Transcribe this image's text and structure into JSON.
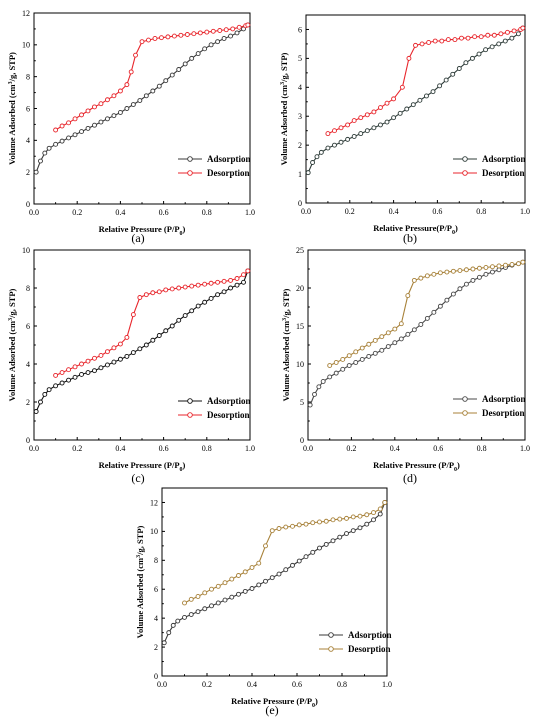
{
  "chart_data": [
    {
      "type": "line",
      "caption": "(a)",
      "xlabel_main": "Relative Pressure (P/P",
      "xlabel_sub": "0",
      "xlabel_end": ")",
      "ylabel_main": "Volume Adsorbed (cm",
      "ylabel_sup": "3",
      "ylabel_end": "/g, STP)",
      "xlim": [
        0,
        1.0
      ],
      "ylim": [
        0,
        12
      ],
      "xticks": [
        "0.0",
        "0.2",
        "0.4",
        "0.6",
        "0.8",
        "1.0"
      ],
      "yticks": [
        "0",
        "2",
        "4",
        "6",
        "8",
        "10",
        "12"
      ],
      "legend_position": "bottom-right",
      "series": [
        {
          "name": "Adsorption",
          "color": "#3a3a3a",
          "x": [
            0.01,
            0.03,
            0.05,
            0.07,
            0.1,
            0.13,
            0.16,
            0.19,
            0.22,
            0.25,
            0.28,
            0.31,
            0.34,
            0.37,
            0.4,
            0.43,
            0.46,
            0.49,
            0.52,
            0.55,
            0.58,
            0.61,
            0.64,
            0.67,
            0.7,
            0.73,
            0.76,
            0.79,
            0.82,
            0.85,
            0.88,
            0.91,
            0.94,
            0.97,
            0.99
          ],
          "y": [
            2.0,
            2.7,
            3.2,
            3.5,
            3.75,
            3.95,
            4.15,
            4.35,
            4.55,
            4.75,
            4.95,
            5.15,
            5.35,
            5.55,
            5.75,
            6.0,
            6.25,
            6.5,
            6.8,
            7.1,
            7.4,
            7.75,
            8.1,
            8.45,
            8.8,
            9.15,
            9.45,
            9.75,
            10.0,
            10.2,
            10.4,
            10.55,
            10.75,
            11.0,
            11.25
          ]
        },
        {
          "name": "Desorption",
          "color": "#e8262c",
          "x": [
            0.1,
            0.13,
            0.16,
            0.19,
            0.22,
            0.25,
            0.28,
            0.31,
            0.34,
            0.37,
            0.4,
            0.43,
            0.45,
            0.47,
            0.5,
            0.53,
            0.56,
            0.59,
            0.62,
            0.65,
            0.68,
            0.71,
            0.74,
            0.77,
            0.8,
            0.83,
            0.86,
            0.89,
            0.92,
            0.95,
            0.98,
            0.99
          ],
          "y": [
            4.65,
            4.9,
            5.1,
            5.35,
            5.6,
            5.85,
            6.1,
            6.3,
            6.55,
            6.8,
            7.1,
            7.5,
            8.3,
            9.35,
            10.2,
            10.3,
            10.4,
            10.45,
            10.5,
            10.55,
            10.6,
            10.65,
            10.7,
            10.75,
            10.8,
            10.85,
            10.9,
            10.95,
            11.0,
            11.1,
            11.2,
            11.25
          ]
        }
      ]
    },
    {
      "type": "line",
      "caption": "(b)",
      "xlabel_main": "Relative Pressure(P/P",
      "xlabel_sub": "0",
      "xlabel_end": ")",
      "ylabel_main": "Volume Adsorbed (cm",
      "ylabel_sup": "3",
      "ylabel_end": "/g, STP)",
      "xlim": [
        0,
        1.0
      ],
      "ylim": [
        0,
        6.5
      ],
      "xticks": [
        "0.0",
        "0.2",
        "0.4",
        "0.6",
        "0.8",
        "1.0"
      ],
      "yticks": [
        "0",
        "1",
        "2",
        "3",
        "4",
        "5",
        "6"
      ],
      "legend_position": "bottom-right",
      "series": [
        {
          "name": "Adsorption",
          "color": "#2f3d3a",
          "x": [
            0.01,
            0.03,
            0.05,
            0.07,
            0.1,
            0.13,
            0.16,
            0.19,
            0.22,
            0.25,
            0.28,
            0.31,
            0.34,
            0.37,
            0.4,
            0.43,
            0.46,
            0.49,
            0.52,
            0.55,
            0.58,
            0.61,
            0.64,
            0.67,
            0.7,
            0.73,
            0.76,
            0.79,
            0.82,
            0.85,
            0.88,
            0.91,
            0.94,
            0.97,
            0.99
          ],
          "y": [
            1.05,
            1.4,
            1.6,
            1.75,
            1.9,
            2.0,
            2.1,
            2.2,
            2.3,
            2.4,
            2.5,
            2.6,
            2.7,
            2.8,
            2.95,
            3.1,
            3.25,
            3.4,
            3.55,
            3.7,
            3.85,
            4.05,
            4.25,
            4.45,
            4.65,
            4.85,
            5.0,
            5.15,
            5.3,
            5.4,
            5.5,
            5.6,
            5.7,
            5.85,
            6.05
          ]
        },
        {
          "name": "Desorption",
          "color": "#e8262c",
          "x": [
            0.1,
            0.13,
            0.16,
            0.19,
            0.22,
            0.25,
            0.28,
            0.31,
            0.34,
            0.37,
            0.4,
            0.44,
            0.47,
            0.5,
            0.53,
            0.56,
            0.59,
            0.62,
            0.65,
            0.68,
            0.71,
            0.74,
            0.77,
            0.8,
            0.83,
            0.86,
            0.89,
            0.92,
            0.95,
            0.98,
            0.99
          ],
          "y": [
            2.4,
            2.5,
            2.6,
            2.7,
            2.85,
            2.95,
            3.05,
            3.15,
            3.3,
            3.45,
            3.6,
            4.0,
            5.0,
            5.45,
            5.5,
            5.55,
            5.6,
            5.6,
            5.65,
            5.65,
            5.7,
            5.7,
            5.75,
            5.75,
            5.8,
            5.8,
            5.85,
            5.9,
            5.95,
            6.0,
            6.05
          ]
        }
      ]
    },
    {
      "type": "line",
      "caption": "(c)",
      "xlabel_main": "Relative Pressure (P/P",
      "xlabel_sub": "0",
      "xlabel_end": ")",
      "ylabel_main": "Volume Adsorbed (cm",
      "ylabel_sup": "3",
      "ylabel_end": "/g, STP)",
      "xlim": [
        0,
        1.0
      ],
      "ylim": [
        0,
        10
      ],
      "xticks": [
        "0.0",
        "0.2",
        "0.4",
        "0.6",
        "0.8",
        "1.0"
      ],
      "yticks": [
        "0",
        "2",
        "4",
        "6",
        "8",
        "10"
      ],
      "legend_position": "bottom-right",
      "series": [
        {
          "name": "Adsorption",
          "color": "#111111",
          "x": [
            0.01,
            0.03,
            0.05,
            0.07,
            0.1,
            0.13,
            0.16,
            0.19,
            0.22,
            0.25,
            0.28,
            0.31,
            0.34,
            0.37,
            0.4,
            0.43,
            0.46,
            0.49,
            0.52,
            0.55,
            0.58,
            0.61,
            0.64,
            0.67,
            0.7,
            0.73,
            0.76,
            0.79,
            0.82,
            0.85,
            0.88,
            0.91,
            0.94,
            0.97,
            0.99
          ],
          "y": [
            1.5,
            2.0,
            2.4,
            2.65,
            2.85,
            3.0,
            3.15,
            3.3,
            3.45,
            3.55,
            3.65,
            3.8,
            3.95,
            4.1,
            4.25,
            4.4,
            4.6,
            4.8,
            5.0,
            5.25,
            5.5,
            5.75,
            6.0,
            6.3,
            6.55,
            6.8,
            7.05,
            7.25,
            7.45,
            7.65,
            7.8,
            8.0,
            8.15,
            8.3,
            8.9
          ]
        },
        {
          "name": "Desorption",
          "color": "#e8262c",
          "x": [
            0.1,
            0.13,
            0.16,
            0.19,
            0.22,
            0.25,
            0.28,
            0.31,
            0.34,
            0.37,
            0.4,
            0.43,
            0.46,
            0.49,
            0.52,
            0.55,
            0.58,
            0.61,
            0.64,
            0.67,
            0.7,
            0.73,
            0.76,
            0.79,
            0.82,
            0.85,
            0.88,
            0.91,
            0.94,
            0.97,
            0.99
          ],
          "y": [
            3.4,
            3.55,
            3.7,
            3.85,
            4.0,
            4.15,
            4.3,
            4.45,
            4.65,
            4.85,
            5.05,
            5.4,
            6.6,
            7.5,
            7.65,
            7.75,
            7.8,
            7.9,
            7.95,
            8.0,
            8.05,
            8.1,
            8.15,
            8.2,
            8.25,
            8.3,
            8.35,
            8.4,
            8.5,
            8.7,
            8.9
          ]
        }
      ]
    },
    {
      "type": "line",
      "caption": "(d)",
      "xlabel_main": "Relative Pressure (P/P",
      "xlabel_sub": "0",
      "xlabel_end": ")",
      "ylabel_main": "Volume Adsorbed (cm",
      "ylabel_sup": "3",
      "ylabel_end": "/g, STP)",
      "xlim": [
        0,
        1.0
      ],
      "ylim": [
        0,
        25
      ],
      "xticks": [
        "0.0",
        "0.2",
        "0.4",
        "0.6",
        "0.8",
        "1.0"
      ],
      "yticks": [
        "0",
        "5",
        "10",
        "15",
        "20",
        "25"
      ],
      "legend_position": "bottom-right",
      "series": [
        {
          "name": "Adsorption",
          "color": "#4a4a4a",
          "x": [
            0.01,
            0.03,
            0.05,
            0.07,
            0.1,
            0.13,
            0.16,
            0.19,
            0.22,
            0.25,
            0.28,
            0.31,
            0.34,
            0.37,
            0.4,
            0.43,
            0.46,
            0.49,
            0.52,
            0.55,
            0.58,
            0.61,
            0.64,
            0.67,
            0.7,
            0.73,
            0.76,
            0.79,
            0.82,
            0.85,
            0.88,
            0.91,
            0.94,
            0.97,
            0.99
          ],
          "y": [
            4.6,
            6.0,
            7.0,
            7.7,
            8.3,
            8.8,
            9.3,
            9.8,
            10.2,
            10.6,
            11.0,
            11.4,
            11.8,
            12.3,
            12.8,
            13.3,
            13.9,
            14.5,
            15.2,
            16.0,
            16.8,
            17.6,
            18.4,
            19.2,
            19.9,
            20.5,
            21.0,
            21.4,
            21.8,
            22.1,
            22.4,
            22.7,
            23.0,
            23.2,
            23.4
          ]
        },
        {
          "name": "Desorption",
          "color": "#a8823a",
          "x": [
            0.1,
            0.13,
            0.16,
            0.19,
            0.22,
            0.25,
            0.28,
            0.31,
            0.34,
            0.37,
            0.4,
            0.43,
            0.46,
            0.49,
            0.52,
            0.55,
            0.58,
            0.61,
            0.64,
            0.67,
            0.7,
            0.73,
            0.76,
            0.79,
            0.82,
            0.85,
            0.88,
            0.91,
            0.94,
            0.97,
            0.99
          ],
          "y": [
            9.8,
            10.2,
            10.6,
            11.1,
            11.6,
            12.1,
            12.6,
            13.1,
            13.6,
            14.1,
            14.6,
            15.3,
            19.0,
            21.0,
            21.3,
            21.6,
            21.8,
            22.0,
            22.1,
            22.2,
            22.3,
            22.4,
            22.5,
            22.6,
            22.7,
            22.8,
            22.9,
            23.0,
            23.1,
            23.2,
            23.4
          ]
        }
      ]
    },
    {
      "type": "line",
      "caption": "(e)",
      "xlabel_main": "Relative Pressure (P/P",
      "xlabel_sub": "0",
      "xlabel_end": ")",
      "ylabel_main": "Volume Adsorbed (cm",
      "ylabel_sup": "3",
      "ylabel_end": "/g, STP)",
      "xlim": [
        0,
        1.0
      ],
      "ylim": [
        0,
        13
      ],
      "xticks": [
        "0.0",
        "0.2",
        "0.4",
        "0.6",
        "0.8",
        "1.0"
      ],
      "yticks": [
        "0",
        "2",
        "4",
        "6",
        "8",
        "10",
        "12"
      ],
      "legend_position": "bottom-right",
      "series": [
        {
          "name": "Adsorption",
          "color": "#3a3a3a",
          "x": [
            0.01,
            0.03,
            0.05,
            0.07,
            0.1,
            0.13,
            0.16,
            0.19,
            0.22,
            0.25,
            0.28,
            0.31,
            0.34,
            0.37,
            0.4,
            0.43,
            0.46,
            0.49,
            0.52,
            0.55,
            0.58,
            0.61,
            0.64,
            0.67,
            0.7,
            0.73,
            0.76,
            0.79,
            0.82,
            0.85,
            0.88,
            0.91,
            0.94,
            0.97,
            0.99
          ],
          "y": [
            2.3,
            3.0,
            3.5,
            3.8,
            4.05,
            4.25,
            4.45,
            4.65,
            4.85,
            5.05,
            5.25,
            5.45,
            5.65,
            5.85,
            6.05,
            6.3,
            6.55,
            6.8,
            7.05,
            7.35,
            7.65,
            7.95,
            8.25,
            8.55,
            8.85,
            9.1,
            9.35,
            9.6,
            9.85,
            10.05,
            10.25,
            10.5,
            10.8,
            11.2,
            12.0
          ]
        },
        {
          "name": "Desorption",
          "color": "#a8823a",
          "x": [
            0.1,
            0.13,
            0.16,
            0.19,
            0.22,
            0.25,
            0.28,
            0.31,
            0.34,
            0.37,
            0.4,
            0.43,
            0.46,
            0.49,
            0.52,
            0.55,
            0.58,
            0.61,
            0.64,
            0.67,
            0.7,
            0.73,
            0.76,
            0.79,
            0.82,
            0.85,
            0.88,
            0.91,
            0.94,
            0.97,
            0.99
          ],
          "y": [
            5.05,
            5.3,
            5.5,
            5.75,
            6.0,
            6.2,
            6.45,
            6.7,
            6.95,
            7.2,
            7.5,
            7.8,
            9.0,
            10.05,
            10.2,
            10.3,
            10.35,
            10.45,
            10.5,
            10.6,
            10.65,
            10.7,
            10.8,
            10.85,
            10.9,
            11.0,
            11.05,
            11.15,
            11.3,
            11.55,
            12.0
          ]
        }
      ]
    }
  ]
}
